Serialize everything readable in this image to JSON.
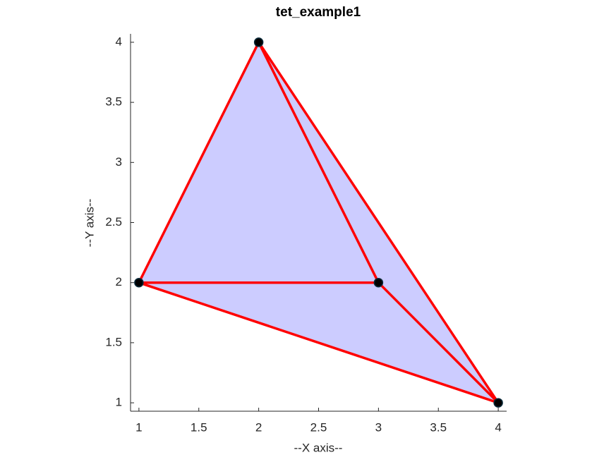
{
  "chart_data": {
    "type": "mesh",
    "title": "tet_example1",
    "xlabel": "--X axis--",
    "ylabel": "--Y axis--",
    "x": [
      1,
      2,
      3,
      4
    ],
    "y": [
      2,
      4,
      2,
      1
    ],
    "edges": [
      [
        0,
        1
      ],
      [
        1,
        2
      ],
      [
        0,
        2
      ],
      [
        1,
        3
      ],
      [
        2,
        3
      ],
      [
        0,
        3
      ]
    ],
    "faces": [
      [
        0,
        1,
        2
      ],
      [
        1,
        2,
        3
      ],
      [
        0,
        2,
        3
      ]
    ],
    "face_color": "#ccccff",
    "edge_color": "#ff0000",
    "marker_color": "#000000",
    "xlim": [
      0.93,
      4.07
    ],
    "ylim": [
      0.93,
      4.07
    ],
    "xticks": [
      1,
      1.5,
      2,
      2.5,
      3,
      3.5,
      4
    ],
    "yticks": [
      1,
      1.5,
      2,
      2.5,
      3,
      3.5,
      4
    ]
  }
}
